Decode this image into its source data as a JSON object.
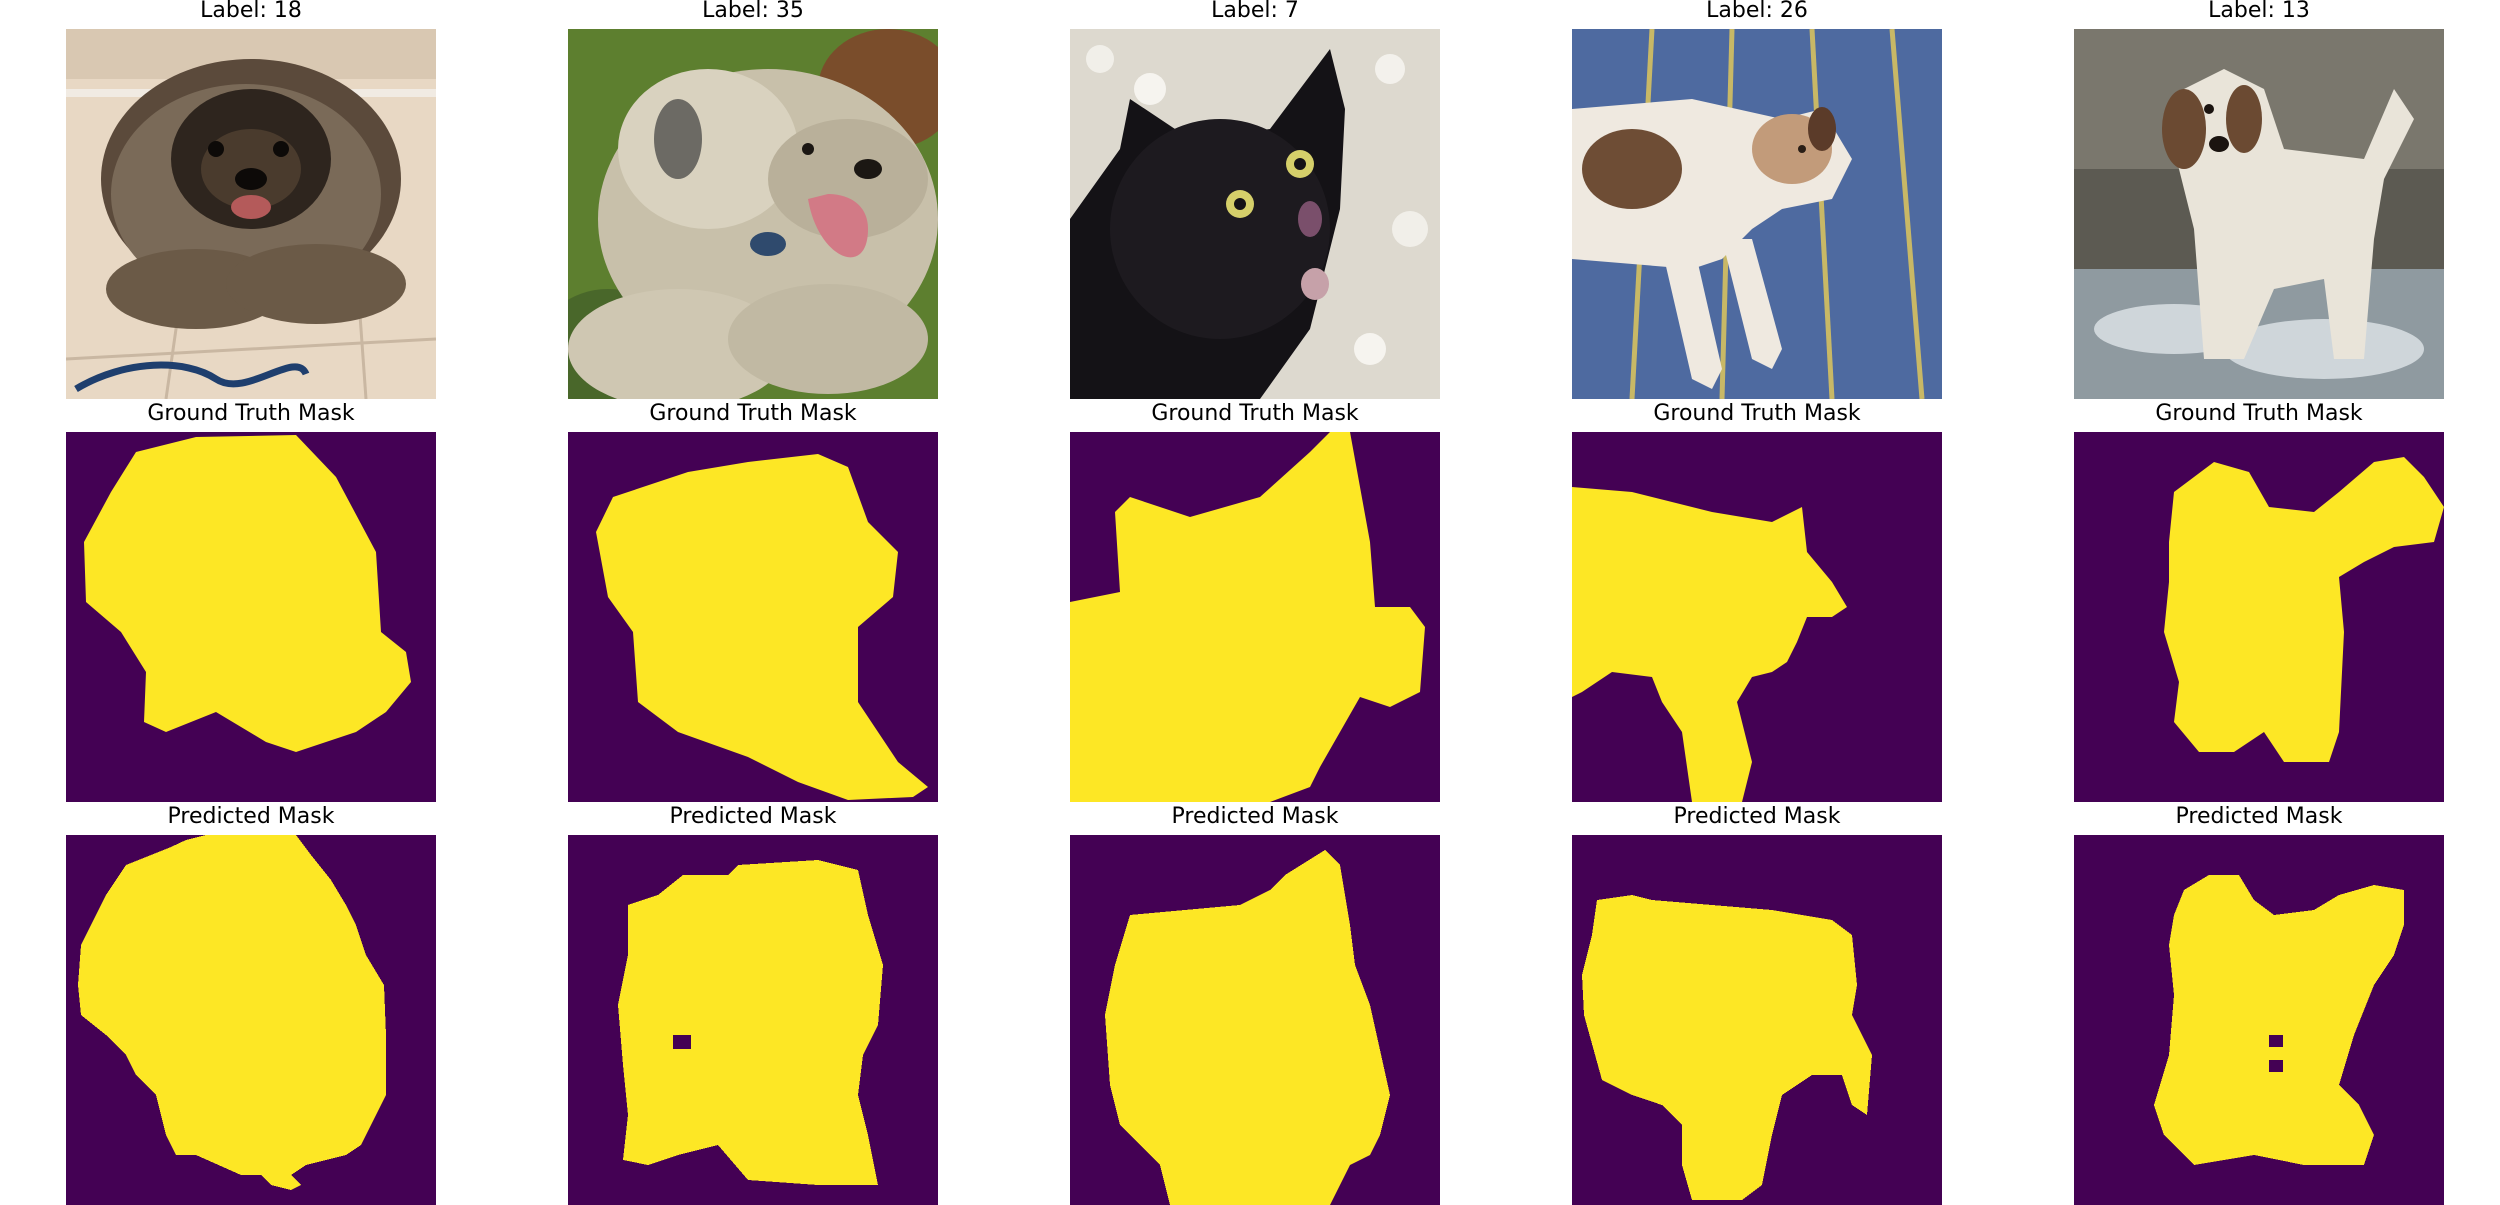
{
  "figure": {
    "columns": [
      {
        "label": "Label: 18",
        "ground_truth_title": "Ground Truth Mask",
        "predicted_title": "Predicted Mask",
        "photo_subject": "fluffy dark keeshond dog sitting on a beige tiled floor"
      },
      {
        "label": "Label: 35",
        "ground_truth_title": "Ground Truth Mask",
        "predicted_title": "Predicted Mask",
        "photo_subject": "shaggy grey dog lying on grass with tongue out"
      },
      {
        "label": "Label: 7",
        "ground_truth_title": "Ground Truth Mask",
        "predicted_title": "Predicted Mask",
        "photo_subject": "black cat with yellow eyes on white pebbles"
      },
      {
        "label": "Label: 26",
        "ground_truth_title": "Ground Truth Mask",
        "predicted_title": "Predicted Mask",
        "photo_subject": "white and brown cat lying on a blue striped bedsheet"
      },
      {
        "label": "Label: 13",
        "ground_truth_title": "Ground Truth Mask",
        "predicted_title": "Predicted Mask",
        "photo_subject": "white spaniel dog walking through splashing water"
      }
    ],
    "colors": {
      "mask_background": "#440154",
      "mask_foreground": "#fde725",
      "mask_edge": "#35b779",
      "title_text": "#000000"
    }
  }
}
